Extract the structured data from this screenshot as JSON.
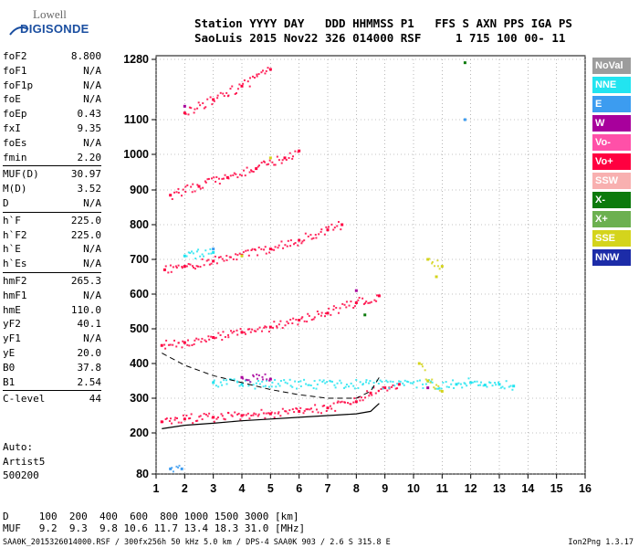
{
  "logo": {
    "line1": "Lowell",
    "line2": "DIGISONDE"
  },
  "header": {
    "row1": "Station YYYY DAY   DDD HHMMSS P1   FFS S AXN PPS IGA PS",
    "row2": "SaoLuis 2015 Nov22 326 014000 RSF     1 715 100 00- 11"
  },
  "params": [
    {
      "name": "foF2",
      "value": "8.800"
    },
    {
      "name": "foF1",
      "value": "N/A"
    },
    {
      "name": "foF1p",
      "value": "N/A"
    },
    {
      "name": "foE",
      "value": "N/A"
    },
    {
      "name": "foEp",
      "value": "0.43"
    },
    {
      "name": "fxI",
      "value": "9.35"
    },
    {
      "name": "foEs",
      "value": "N/A"
    },
    {
      "name": "fmin",
      "value": "2.20"
    },
    {
      "name": "MUF(D)",
      "value": "30.97",
      "sep": true
    },
    {
      "name": "M(D)",
      "value": "3.52"
    },
    {
      "name": "D",
      "value": "N/A"
    },
    {
      "name": "h`F",
      "value": "225.0",
      "sep": true
    },
    {
      "name": "h`F2",
      "value": "225.0"
    },
    {
      "name": "h`E",
      "value": "N/A"
    },
    {
      "name": "h`Es",
      "value": "N/A"
    },
    {
      "name": "hmF2",
      "value": "265.3",
      "sep": true
    },
    {
      "name": "hmF1",
      "value": "N/A"
    },
    {
      "name": "hmE",
      "value": "110.0"
    },
    {
      "name": "yF2",
      "value": "40.1"
    },
    {
      "name": "yF1",
      "value": "N/A"
    },
    {
      "name": "yE",
      "value": "20.0"
    },
    {
      "name": "B0",
      "value": "37.8"
    },
    {
      "name": "B1",
      "value": "2.54"
    },
    {
      "name": "C-level",
      "value": "44",
      "sep": true
    }
  ],
  "autoscale": {
    "line1": "Auto:",
    "line2": "Artist5",
    "line3": "500200"
  },
  "legend": [
    {
      "label": "NoVal",
      "color": "#9c9c9c"
    },
    {
      "label": "NNE",
      "color": "#22e4f0"
    },
    {
      "label": "E",
      "color": "#3c9cf0"
    },
    {
      "label": "W",
      "color": "#a8009c"
    },
    {
      "label": "Vo-",
      "color": "#ff50a8"
    },
    {
      "label": "Vo+",
      "color": "#ff0040"
    },
    {
      "label": "SSW",
      "color": "#f8b0b0"
    },
    {
      "label": "X-",
      "color": "#0c7a0c"
    },
    {
      "label": "X+",
      "color": "#6cb050"
    },
    {
      "label": "SSE",
      "color": "#d4d41c"
    },
    {
      "label": "NNW",
      "color": "#1c2ca8"
    }
  ],
  "footer": {
    "d_row": "D     100  200  400  600  800 1000 1500 3000 [km]",
    "muf_row": "MUF   9.2  9.3  9.8 10.6 11.7 13.4 18.3 31.0 [MHz]",
    "status": "SAA0K_2015326014000.RSF / 300fx256h 50 kHz 5.0 km / DPS-4 SAA0K 903 / 2.6 S 315.8 E",
    "version": "Ion2Png 1.3.17"
  },
  "chart_data": {
    "type": "scatter",
    "xlabel": "",
    "ylabel": "",
    "xlim": [
      1,
      16
    ],
    "ylim": [
      80,
      1300
    ],
    "x_ticks": [
      "1",
      "2",
      "3",
      "4",
      "5",
      "6",
      "7",
      "8",
      "9",
      "10",
      "11",
      "12",
      "13",
      "14",
      "15",
      "16"
    ],
    "y_ticks": [
      "80",
      "200",
      "300",
      "400",
      "500",
      "600",
      "700",
      "800",
      "900",
      "1000",
      "1100",
      "1280"
    ],
    "y_tick_values": [
      80,
      200,
      300,
      400,
      500,
      600,
      700,
      800,
      900,
      1000,
      1100,
      1280
    ],
    "grid": true,
    "legend_position": "right",
    "series": [
      {
        "name": "Vo+",
        "color": "#ff0040",
        "points": [
          [
            1.2,
            232
          ],
          [
            2,
            240
          ],
          [
            3,
            245
          ],
          [
            4,
            250
          ],
          [
            5,
            255
          ],
          [
            6,
            262
          ],
          [
            7,
            272
          ],
          [
            8,
            290
          ],
          [
            8.5,
            315
          ],
          [
            9,
            330
          ],
          [
            9.5,
            340
          ],
          [
            1.2,
            452
          ],
          [
            2,
            460
          ],
          [
            3,
            475
          ],
          [
            4,
            490
          ],
          [
            5,
            505
          ],
          [
            6,
            525
          ],
          [
            7,
            545
          ],
          [
            8,
            575
          ],
          [
            8.8,
            595
          ],
          [
            1.3,
            670
          ],
          [
            2,
            680
          ],
          [
            3,
            695
          ],
          [
            4,
            712
          ],
          [
            5,
            730
          ],
          [
            6,
            755
          ],
          [
            7,
            785
          ],
          [
            7.5,
            800
          ],
          [
            1.5,
            885
          ],
          [
            2.5,
            910
          ],
          [
            3.5,
            935
          ],
          [
            4.5,
            960
          ],
          [
            5.5,
            990
          ],
          [
            6,
            1010
          ],
          [
            2,
            1120
          ],
          [
            3,
            1160
          ],
          [
            4,
            1200
          ],
          [
            5,
            1250
          ]
        ]
      },
      {
        "name": "NNE",
        "color": "#22e4f0",
        "points": [
          [
            3,
            345
          ],
          [
            4,
            340
          ],
          [
            11.5,
            340
          ],
          [
            12,
            345
          ],
          [
            12.5,
            338
          ],
          [
            13,
            340
          ],
          [
            13.5,
            335
          ],
          [
            2,
            710
          ],
          [
            3,
            720
          ]
        ]
      },
      {
        "name": "SSE",
        "color": "#d4d41c",
        "points": [
          [
            10.2,
            400
          ],
          [
            10.5,
            350
          ],
          [
            11,
            320
          ],
          [
            10.5,
            700
          ],
          [
            11,
            680
          ],
          [
            10.8,
            650
          ],
          [
            4,
            710
          ],
          [
            5,
            990
          ]
        ]
      },
      {
        "name": "W",
        "color": "#a8009c",
        "points": [
          [
            2,
            1140
          ],
          [
            4,
            360
          ],
          [
            5,
            355
          ],
          [
            8,
            610
          ],
          [
            10.5,
            330
          ]
        ]
      },
      {
        "name": "E",
        "color": "#3c9cf0",
        "points": [
          [
            1.5,
            95
          ],
          [
            1.9,
            95
          ],
          [
            11.8,
            1100
          ],
          [
            3,
            730
          ]
        ]
      },
      {
        "name": "X-",
        "color": "#0c7a0c",
        "points": [
          [
            11.8,
            1270
          ],
          [
            8.3,
            540
          ]
        ]
      }
    ],
    "curves": {
      "profile_solid": [
        [
          1.2,
          212
        ],
        [
          2,
          222
        ],
        [
          3,
          228
        ],
        [
          4,
          235
        ],
        [
          5,
          240
        ],
        [
          6,
          245
        ],
        [
          7,
          250
        ],
        [
          8,
          255
        ],
        [
          8.5,
          262
        ],
        [
          8.8,
          285
        ]
      ],
      "profile_dashed": [
        [
          1.2,
          430
        ],
        [
          2,
          395
        ],
        [
          3,
          365
        ],
        [
          4,
          345
        ],
        [
          5,
          325
        ],
        [
          6,
          310
        ],
        [
          7,
          300
        ],
        [
          8,
          300
        ],
        [
          8.5,
          320
        ],
        [
          8.8,
          360
        ]
      ]
    }
  }
}
